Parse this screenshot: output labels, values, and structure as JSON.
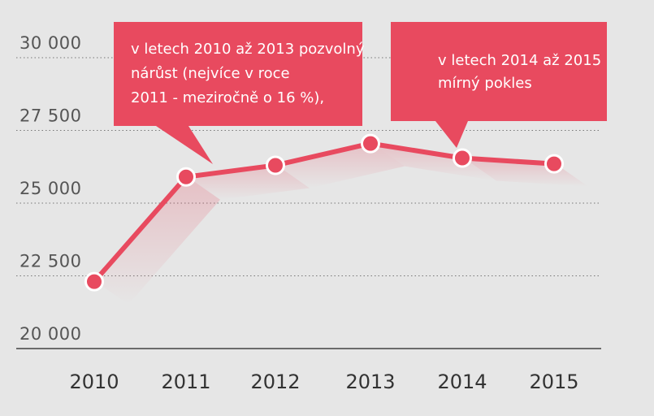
{
  "chart_data": {
    "type": "line",
    "x": [
      "2010",
      "2011",
      "2012",
      "2013",
      "2014",
      "2015"
    ],
    "values": [
      22300,
      25900,
      26300,
      27050,
      26550,
      26350
    ],
    "ylim": [
      20000,
      30000
    ],
    "yticks": [
      "20 000",
      "22 500",
      "25 000",
      "27 500",
      "30 000"
    ],
    "ytick_values": [
      20000,
      22500,
      25000,
      27500,
      30000
    ],
    "grid": true,
    "title": "",
    "xlabel": "",
    "ylabel": ""
  },
  "annotations": [
    {
      "lines": [
        "v letech 2010 až 2013 pozvolný",
        "nárůst (nejvíce v roce",
        "2011 - meziročně o 16 %),"
      ]
    },
    {
      "lines": [
        "v letech 2014 až 2015",
        "mírný pokles"
      ]
    }
  ],
  "colors": {
    "background": "#e6e6e6",
    "line": "#e84a5f",
    "marker_fill": "#e84a5f",
    "marker_stroke": "#ffffff",
    "callout": "#e84a5f"
  }
}
